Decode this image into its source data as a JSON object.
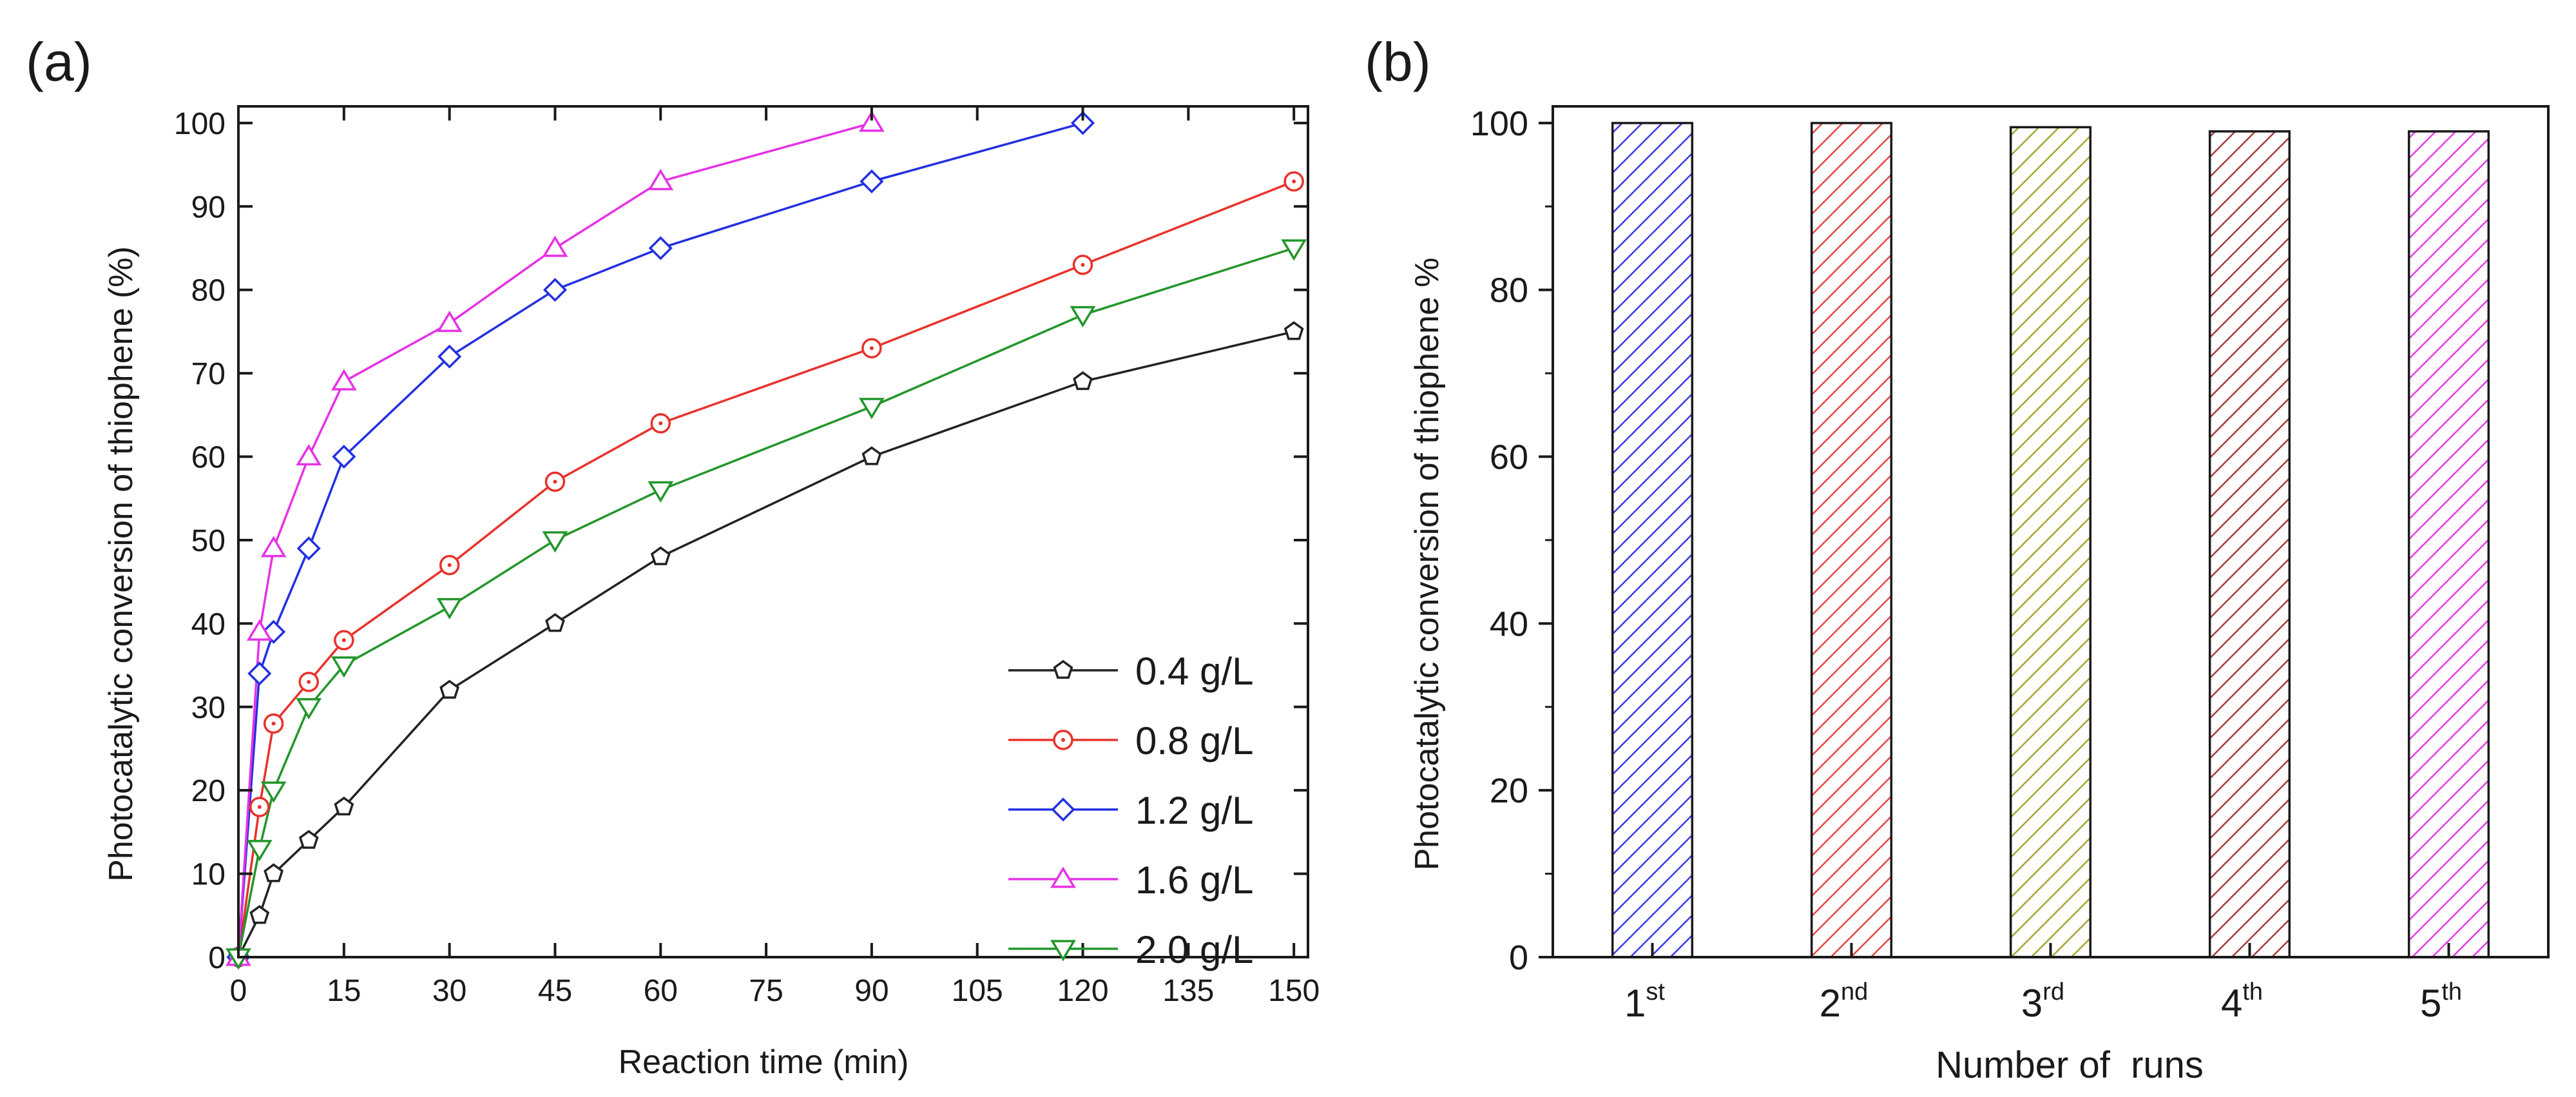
{
  "chart_data": [
    {
      "panel_label": "(a)",
      "type": "line",
      "title": "",
      "xlabel": "Reaction time (min)",
      "ylabel": "Photocatalytic conversion of thiophene (%)",
      "xlim": [
        0,
        152
      ],
      "ylim": [
        0,
        102
      ],
      "xticks": [
        0,
        15,
        30,
        45,
        60,
        75,
        90,
        105,
        120,
        135,
        150
      ],
      "yticks": [
        0,
        10,
        20,
        30,
        40,
        50,
        60,
        70,
        80,
        90,
        100
      ],
      "legend_position": "lower-right",
      "series": [
        {
          "name": "0.4 g/L",
          "color": "#222222",
          "marker": "pentagon",
          "x": [
            0,
            3,
            5,
            10,
            15,
            30,
            45,
            60,
            90,
            120,
            150
          ],
          "y": [
            0,
            5,
            10,
            14,
            18,
            32,
            40,
            48,
            60,
            69,
            75
          ]
        },
        {
          "name": "0.8 g/L",
          "color": "#e8322b",
          "marker": "circle",
          "x": [
            0,
            3,
            5,
            10,
            15,
            30,
            45,
            60,
            90,
            120,
            150
          ],
          "y": [
            0,
            18,
            28,
            33,
            38,
            47,
            57,
            64,
            73,
            83,
            93
          ]
        },
        {
          "name": "1.2 g/L",
          "color": "#2330e0",
          "marker": "diamond",
          "x": [
            0,
            3,
            5,
            10,
            15,
            30,
            45,
            60,
            90,
            120
          ],
          "y": [
            0,
            34,
            39,
            49,
            60,
            72,
            80,
            85,
            93,
            100
          ]
        },
        {
          "name": "1.6 g/L",
          "color": "#e632e6",
          "marker": "triangle-up",
          "x": [
            0,
            3,
            5,
            10,
            15,
            30,
            45,
            60,
            90
          ],
          "y": [
            0,
            39,
            49,
            60,
            69,
            76,
            85,
            93,
            100
          ]
        },
        {
          "name": "2.0 g/L",
          "color": "#22962a",
          "marker": "triangle-down",
          "x": [
            0,
            3,
            5,
            10,
            15,
            30,
            45,
            60,
            90,
            120,
            150
          ],
          "y": [
            0,
            13,
            20,
            30,
            35,
            42,
            50,
            56,
            66,
            77,
            85
          ]
        }
      ]
    },
    {
      "panel_label": "(b)",
      "type": "bar",
      "title": "",
      "xlabel": "Number of  runs",
      "ylabel": "Photocatalytic conversion of thiophene %",
      "ylim": [
        0,
        102
      ],
      "yticks": [
        0,
        20,
        40,
        60,
        80,
        100
      ],
      "categories": [
        {
          "base": "1",
          "sup": "st"
        },
        {
          "base": "2",
          "sup": "nd"
        },
        {
          "base": "3",
          "sup": "rd"
        },
        {
          "base": "4",
          "sup": "th"
        },
        {
          "base": "5",
          "sup": "th"
        }
      ],
      "values": [
        100,
        100,
        99.5,
        99,
        99
      ],
      "colors": [
        "#3a3ae6",
        "#e84646",
        "#a6a632",
        "#a63c3c",
        "#e63ce6"
      ]
    }
  ]
}
